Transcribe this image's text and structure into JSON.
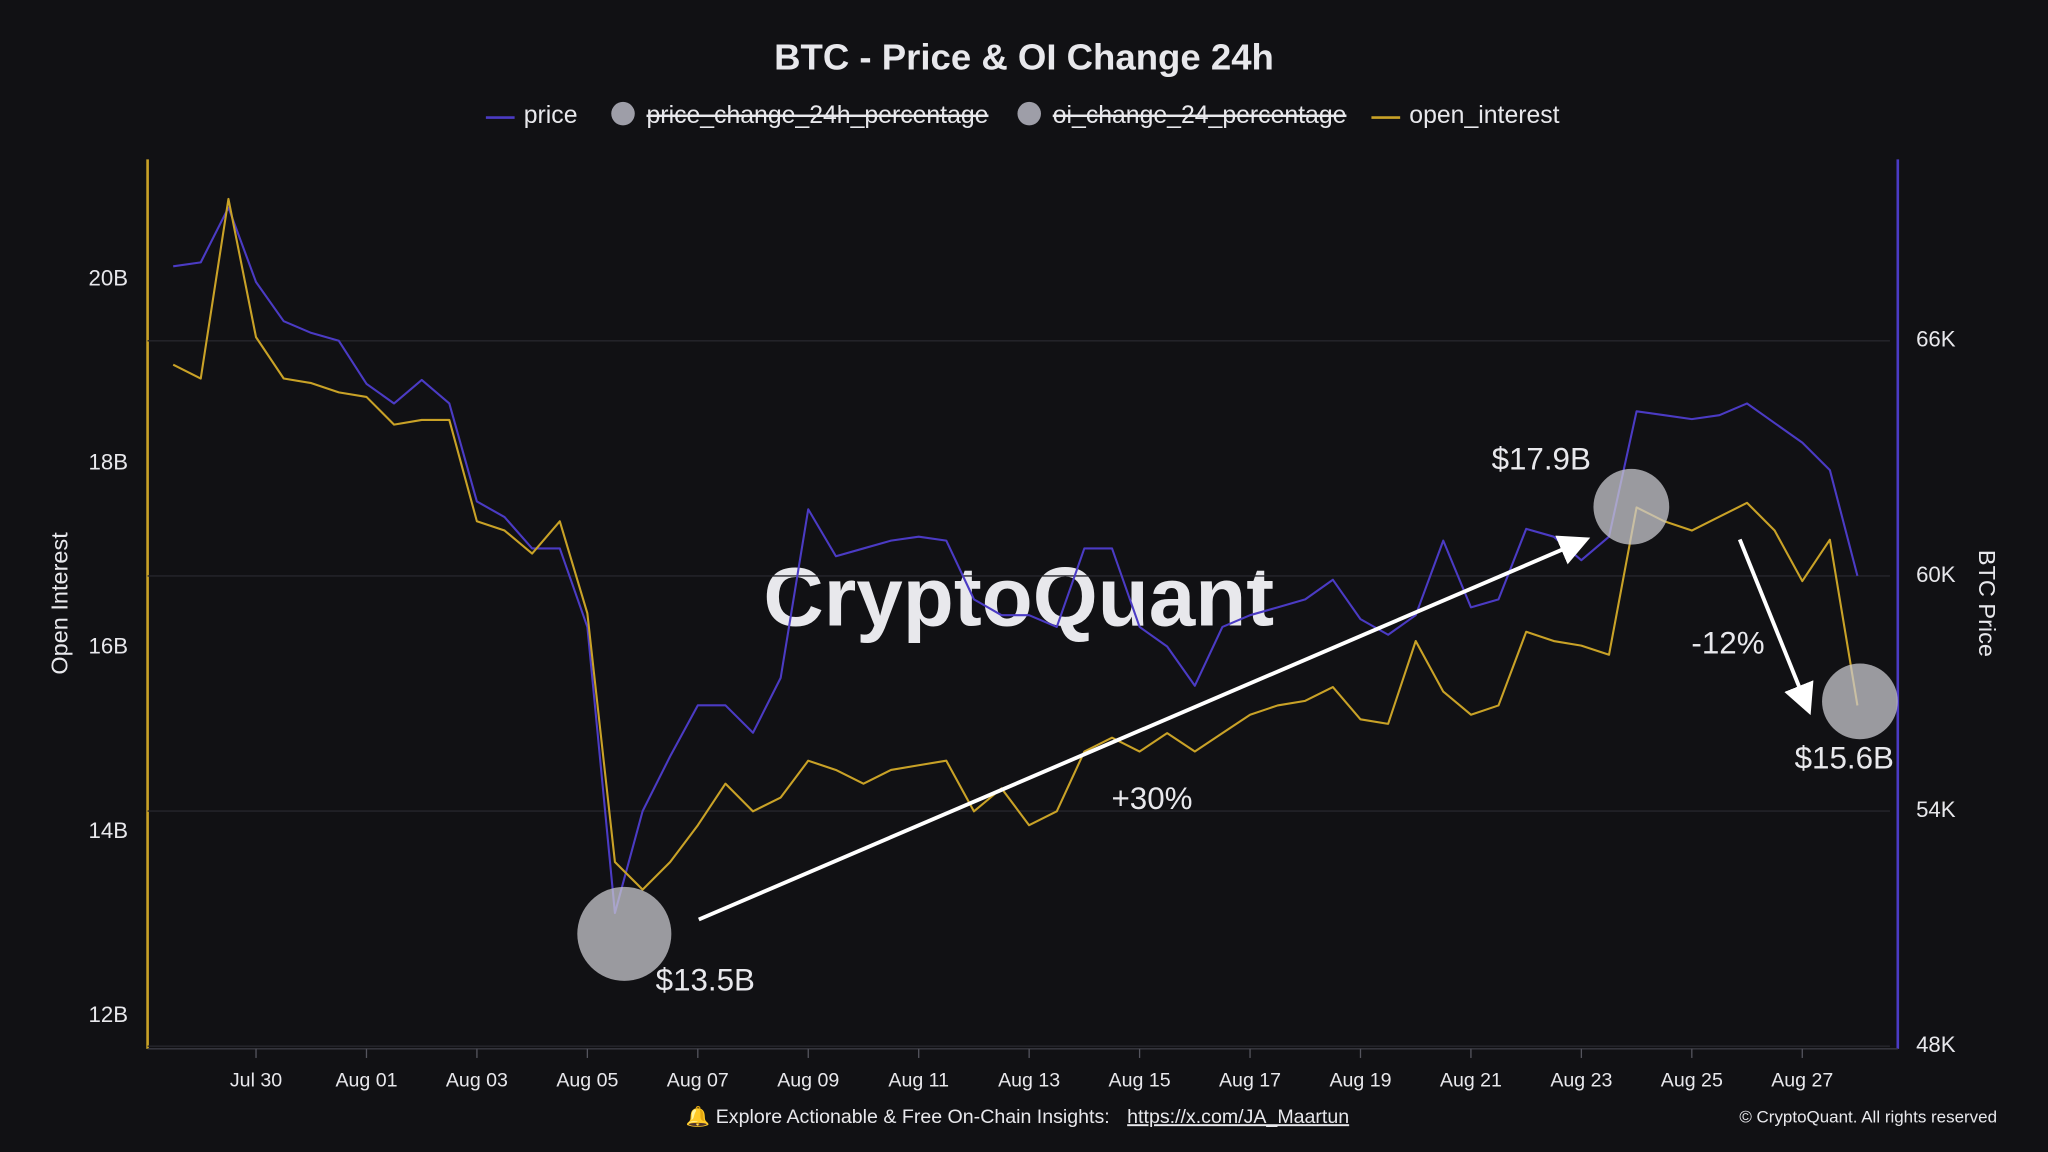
{
  "chart_data": {
    "type": "line",
    "title": "BTC - Price & OI Change 24h",
    "categories": [
      null,
      null,
      null,
      "Jul 30",
      null,
      null,
      null,
      "Aug 01",
      null,
      null,
      null,
      "Aug 03",
      null,
      null,
      null,
      "Aug 05",
      null,
      null,
      null,
      "Aug 07",
      null,
      null,
      null,
      "Aug 09",
      null,
      null,
      null,
      "Aug 11",
      null,
      null,
      null,
      "Aug 13",
      null,
      null,
      null,
      "Aug 15",
      null,
      null,
      null,
      "Aug 17",
      null,
      null,
      null,
      "Aug 19",
      null,
      null,
      null,
      "Aug 21",
      null,
      null,
      null,
      "Aug 23",
      null,
      null,
      null,
      "Aug 25",
      null,
      null,
      null,
      "Aug 27",
      null,
      null
    ],
    "series": [
      {
        "name": "price",
        "color": "#4b3bc4",
        "axis": "y2",
        "values": [
          67900,
          68000,
          69400,
          67500,
          66500,
          66200,
          66000,
          64900,
          64400,
          65000,
          64400,
          61900,
          61500,
          60700,
          60700,
          58700,
          51400,
          54000,
          55400,
          56700,
          56700,
          56000,
          57400,
          61700,
          60500,
          60700,
          60900,
          61000,
          60900,
          59400,
          59000,
          59000,
          58700,
          60700,
          60700,
          58700,
          58200,
          57200,
          58700,
          59000,
          59200,
          59400,
          59900,
          58900,
          58500,
          59000,
          60900,
          59200,
          59400,
          61200,
          61000,
          60400,
          61000,
          64200,
          64100,
          64000,
          64100,
          64400,
          63900,
          63400,
          62700,
          60000
        ]
      },
      {
        "name": "open_interest",
        "color": "#c9a227",
        "axis": "y",
        "values": [
          19.4,
          19.25,
          21.2,
          19.7,
          19.25,
          19.2,
          19.1,
          19.05,
          18.75,
          18.8,
          18.8,
          17.7,
          17.6,
          17.35,
          17.7,
          16.7,
          14.0,
          13.7,
          14.0,
          14.4,
          14.85,
          14.55,
          14.7,
          15.1,
          15.0,
          14.85,
          15.0,
          15.05,
          15.1,
          14.55,
          14.8,
          14.4,
          14.55,
          15.2,
          15.35,
          15.2,
          15.4,
          15.2,
          15.4,
          15.6,
          15.7,
          15.75,
          15.9,
          15.55,
          15.5,
          16.4,
          15.85,
          15.6,
          15.7,
          16.5,
          16.4,
          16.35,
          16.25,
          17.85,
          17.7,
          17.6,
          17.75,
          17.9,
          17.6,
          17.05,
          17.5,
          15.7
        ]
      }
    ],
    "hidden_series": [
      {
        "name": "price_change_24h_percentage",
        "color": "#9e9ea8"
      },
      {
        "name": "oi_change_24_percentage",
        "color": "#9e9ea8"
      }
    ],
    "y_label": "Open Interest",
    "y2_label": "BTC Price",
    "ylim": [
      12,
      21.63
    ],
    "yticks": [
      {
        "value": 12,
        "label": "12B"
      },
      {
        "value": 14,
        "label": "14B"
      },
      {
        "value": 16,
        "label": "16B"
      },
      {
        "value": 18,
        "label": "18B"
      },
      {
        "value": 20,
        "label": "20B"
      }
    ],
    "y2lim": [
      48000,
      70630
    ],
    "y2ticks": [
      {
        "value": 48000,
        "label": "48K"
      },
      {
        "value": 54000,
        "label": "54K"
      },
      {
        "value": 60000,
        "label": "60K"
      },
      {
        "value": 66000,
        "label": "66K"
      }
    ],
    "grid": true,
    "legend": "top",
    "annotations": [
      "$13.5B",
      "$17.9B",
      "$15.6B",
      "+30%",
      "-12%"
    ],
    "watermark": "CryptoQuant"
  },
  "footer": {
    "text": "Explore Actionable & Free On-Chain Insights:",
    "link": "https://x.com/JA_Maartun",
    "copyright": "© CryptoQuant. All rights reserved"
  }
}
